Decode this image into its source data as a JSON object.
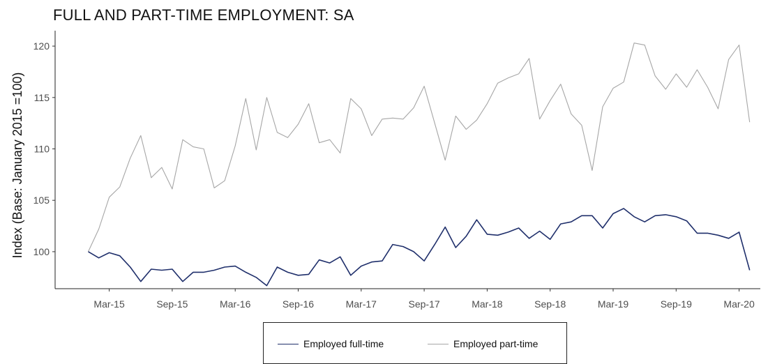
{
  "chart_data": {
    "type": "line",
    "title": "FULL AND PART-TIME EMPLOYMENT: SA",
    "xlabel": "",
    "ylabel": "Index (Base: January 2015 =100)",
    "ylim": [
      96.4,
      121.5
    ],
    "yticks": [
      100,
      105,
      110,
      115,
      120
    ],
    "xtick_labels": [
      "Mar-15",
      "Sep-15",
      "Mar-16",
      "Sep-16",
      "Mar-17",
      "Sep-17",
      "Mar-18",
      "Sep-18",
      "Mar-19",
      "Sep-19",
      "Mar-20"
    ],
    "x_start": "Jan-15",
    "x_end": "Apr-20",
    "grid": false,
    "legend_position": "bottom",
    "colors": {
      "full_time": "#1f2f6b",
      "part_time": "#a6a6a6"
    },
    "series": [
      {
        "name": "Employed full-time",
        "color": "#1f2f6b",
        "values": [
          100.0,
          99.4,
          99.9,
          99.6,
          98.5,
          97.1,
          98.3,
          98.2,
          98.3,
          97.1,
          98.0,
          98.0,
          98.2,
          98.5,
          98.6,
          98.0,
          97.5,
          96.7,
          98.5,
          98.0,
          97.7,
          97.8,
          99.2,
          98.9,
          99.5,
          97.7,
          98.6,
          99.0,
          99.1,
          100.7,
          100.5,
          100.0,
          99.1,
          100.7,
          102.4,
          100.4,
          101.5,
          103.1,
          101.7,
          101.6,
          101.9,
          102.3,
          101.3,
          102.0,
          101.2,
          102.7,
          102.9,
          103.5,
          103.5,
          102.3,
          103.7,
          104.2,
          103.4,
          102.9,
          103.5,
          103.6,
          103.4,
          103.0,
          101.8,
          101.8,
          101.6,
          101.3,
          101.9,
          98.2
        ]
      },
      {
        "name": "Employed part-time",
        "color": "#a6a6a6",
        "values": [
          100.0,
          102.2,
          105.3,
          106.3,
          109.1,
          111.3,
          107.2,
          108.2,
          106.1,
          110.9,
          110.2,
          110.0,
          106.2,
          106.9,
          110.3,
          114.9,
          109.9,
          115.0,
          111.6,
          111.1,
          112.4,
          114.4,
          110.6,
          110.9,
          109.6,
          114.9,
          113.9,
          111.3,
          112.9,
          113.0,
          112.9,
          114.0,
          116.1,
          112.5,
          108.9,
          113.2,
          111.9,
          112.8,
          114.4,
          116.4,
          116.9,
          117.3,
          118.8,
          112.9,
          114.7,
          116.3,
          113.4,
          112.3,
          107.9,
          114.1,
          115.9,
          116.5,
          120.3,
          120.1,
          117.1,
          115.8,
          117.3,
          116.0,
          117.7,
          116.0,
          113.9,
          118.7,
          120.1,
          112.6
        ]
      }
    ]
  }
}
